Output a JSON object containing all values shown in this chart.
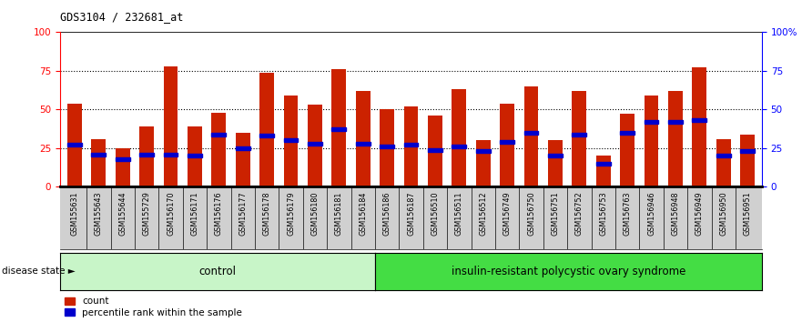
{
  "title": "GDS3104 / 232681_at",
  "samples": [
    "GSM155631",
    "GSM155643",
    "GSM155644",
    "GSM155729",
    "GSM156170",
    "GSM156171",
    "GSM156176",
    "GSM156177",
    "GSM156178",
    "GSM156179",
    "GSM156180",
    "GSM156181",
    "GSM156184",
    "GSM156186",
    "GSM156187",
    "GSM156510",
    "GSM156511",
    "GSM156512",
    "GSM156749",
    "GSM156750",
    "GSM156751",
    "GSM156752",
    "GSM156753",
    "GSM156763",
    "GSM156946",
    "GSM156948",
    "GSM156949",
    "GSM156950",
    "GSM156951"
  ],
  "counts": [
    54,
    31,
    25,
    39,
    78,
    39,
    48,
    35,
    74,
    59,
    53,
    76,
    62,
    50,
    52,
    46,
    63,
    30,
    54,
    65,
    30,
    62,
    20,
    47,
    59,
    62,
    77,
    31,
    34
  ],
  "percentiles": [
    27,
    21,
    18,
    21,
    21,
    20,
    34,
    25,
    33,
    30,
    28,
    37,
    28,
    26,
    27,
    24,
    26,
    23,
    29,
    35,
    20,
    34,
    15,
    35,
    42,
    42,
    43,
    20,
    23
  ],
  "n_control": 13,
  "bar_color": "#cc2200",
  "percentile_color": "#0000cc",
  "control_bg": "#c8f5c8",
  "pcos_bg": "#44dd44",
  "yticks": [
    0,
    25,
    50,
    75,
    100
  ],
  "ylim": [
    0,
    100
  ],
  "title_text": "GDS3104 / 232681_at",
  "disease_state_text": "disease state",
  "control_label": "control",
  "pcos_label": "insulin-resistant polycystic ovary syndrome",
  "legend_count": "count",
  "legend_pct": "percentile rank within the sample",
  "tick_bg": "#d0d0d0"
}
